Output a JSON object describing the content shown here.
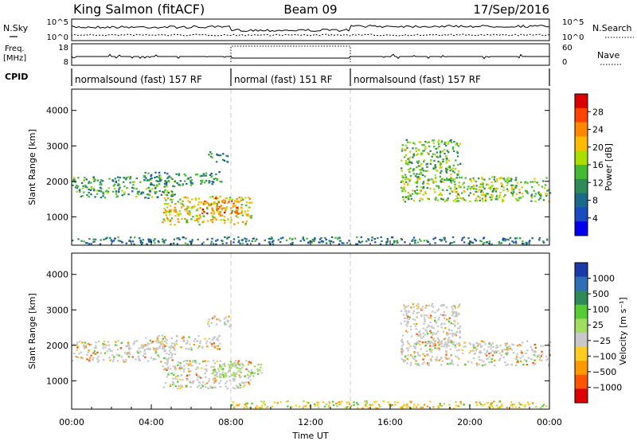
{
  "header": {
    "station": "King Salmon (fitACF)",
    "beam": "Beam 09",
    "date": "17/Sep/2016"
  },
  "status_panels": {
    "nsky_label": "N.Sky",
    "nsearch_label": "N.Search",
    "nsky_ticks": [
      "10^5",
      "10^0"
    ],
    "nsearch_ticks": [
      "10^5",
      "10^0"
    ],
    "freq_label_line1": "Freq.",
    "freq_label_line2": "[MHz]",
    "freq_ticks": [
      "18",
      "8"
    ],
    "nave_label": "Nave",
    "nave_ticks": [
      "60",
      "0"
    ],
    "cpid_label": "CPID",
    "cpid_segments": [
      {
        "label": "normalsound (fast) 157 RF",
        "start_hour": 0,
        "end_hour": 8
      },
      {
        "label": "normal (fast) 151 RF",
        "start_hour": 8,
        "end_hour": 14
      },
      {
        "label": "normalsound (fast) 157 RF",
        "start_hour": 14,
        "end_hour": 24
      }
    ]
  },
  "colorbars": {
    "power": {
      "label": "Power [dB]",
      "ticks": [
        "28",
        "24",
        "20",
        "16",
        "12",
        "8",
        "4"
      ],
      "colors": [
        "#dd0000",
        "#ff4400",
        "#ff8800",
        "#ffbb00",
        "#aadd00",
        "#44bb33",
        "#2e8b57",
        "#1a6b8a",
        "#1a4bc0",
        "#0000ee"
      ]
    },
    "velocity": {
      "label": "Velocity [m s⁻¹]",
      "ticks": [
        "1000",
        "500",
        "100",
        "25",
        "−25",
        "−100",
        "−500",
        "−1000"
      ],
      "colors": [
        "#1a3aa8",
        "#2f6fb5",
        "#2e8b57",
        "#55cc33",
        "#a0dd60",
        "#c8c8c8",
        "#ffcc22",
        "#ff9900",
        "#ff5500",
        "#dd0000"
      ]
    }
  },
  "chart_data": [
    {
      "type": "heatmap",
      "name": "power-panel",
      "quantity": "Power [dB]",
      "ylabel": "Slant Range [km]",
      "xlim_hours": [
        0,
        24
      ],
      "ylim_km": [
        200,
        4600
      ],
      "ytick_values": [
        1000,
        2000,
        3000,
        4000
      ],
      "ytick_labels": [
        "1000",
        "2000",
        "3000",
        "4000"
      ],
      "scale_dB": [
        0,
        32
      ],
      "blobs": [
        {
          "t0": 0.0,
          "t1": 5.2,
          "r0": 1550,
          "r1": 2150,
          "level": 12
        },
        {
          "t0": 3.5,
          "t1": 7.5,
          "r0": 1900,
          "r1": 2300,
          "level": 10
        },
        {
          "t0": 6.8,
          "t1": 8.0,
          "r0": 2550,
          "r1": 2850,
          "level": 10
        },
        {
          "t0": 4.5,
          "t1": 9.0,
          "r0": 800,
          "r1": 1600,
          "level": 20
        },
        {
          "t0": 6.5,
          "t1": 8.5,
          "r0": 1100,
          "r1": 1550,
          "level": 26
        },
        {
          "t0": 16.5,
          "t1": 24.0,
          "r0": 1450,
          "r1": 2150,
          "level": 16
        },
        {
          "t0": 16.5,
          "t1": 19.5,
          "r0": 2000,
          "r1": 3200,
          "level": 14
        },
        {
          "t0": 0.0,
          "t1": 24.0,
          "r0": 250,
          "r1": 450,
          "level": 8
        }
      ]
    },
    {
      "type": "heatmap",
      "name": "velocity-panel",
      "quantity": "Velocity [m s⁻¹]",
      "xlabel": "Time UT",
      "ylabel": "Slant Range [km]",
      "xlim_hours": [
        0,
        24
      ],
      "ylim_km": [
        200,
        4600
      ],
      "ytick_values": [
        1000,
        2000,
        3000,
        4000
      ],
      "ytick_labels": [
        "1000",
        "2000",
        "3000",
        "4000"
      ],
      "xtick_values": [
        0,
        4,
        8,
        12,
        16,
        20,
        24
      ],
      "xtick_labels": [
        "00:00",
        "04:00",
        "08:00",
        "12:00",
        "16:00",
        "20:00",
        "00:00"
      ],
      "blobs": [
        {
          "t0": 0.0,
          "t1": 5.2,
          "r0": 1550,
          "r1": 2150,
          "vel": 0
        },
        {
          "t0": 3.5,
          "t1": 7.5,
          "r0": 1900,
          "r1": 2300,
          "vel": 0
        },
        {
          "t0": 6.8,
          "t1": 8.0,
          "r0": 2550,
          "r1": 2850,
          "vel": 0
        },
        {
          "t0": 4.5,
          "t1": 9.0,
          "r0": 800,
          "r1": 1600,
          "vel": 0
        },
        {
          "t0": 7.0,
          "t1": 9.5,
          "r0": 1100,
          "r1": 1500,
          "vel": 150
        },
        {
          "t0": 16.5,
          "t1": 24.0,
          "r0": 1450,
          "r1": 2150,
          "vel": 0
        },
        {
          "t0": 16.5,
          "t1": 19.5,
          "r0": 2000,
          "r1": 3200,
          "vel": 0
        },
        {
          "t0": 8.0,
          "t1": 24.0,
          "r0": 250,
          "r1": 450,
          "vel": -60
        }
      ]
    }
  ]
}
